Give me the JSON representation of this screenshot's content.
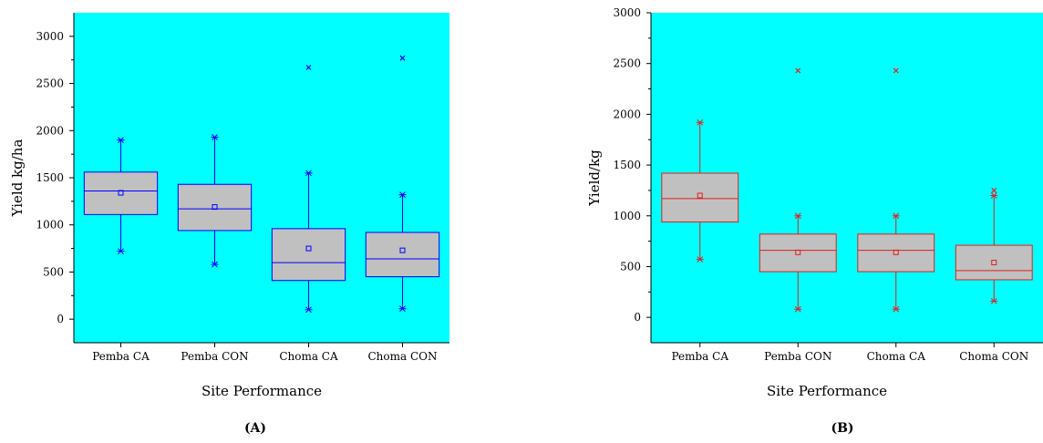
{
  "chart_data": [
    {
      "type": "box",
      "panel_label": "(A)",
      "xlabel": "Site Performance",
      "ylabel": "Yield kg/ha",
      "ylim": [
        -250,
        3250
      ],
      "yticks": [
        0,
        500,
        1000,
        1500,
        2000,
        2500,
        3000
      ],
      "plot_background": "#00ffff",
      "color": "#0000ff",
      "categories": [
        "Pemba CA",
        "Pemba CON",
        "Choma CA",
        "Choma CON"
      ],
      "boxes": [
        {
          "q1": 1110,
          "median": 1360,
          "q3": 1560,
          "mean": 1340,
          "whisker_low": 720,
          "whisker_high": 1900,
          "outliers": []
        },
        {
          "q1": 940,
          "median": 1170,
          "q3": 1430,
          "mean": 1190,
          "whisker_low": 580,
          "whisker_high": 1930,
          "outliers": []
        },
        {
          "q1": 410,
          "median": 600,
          "q3": 960,
          "mean": 750,
          "whisker_low": 100,
          "whisker_high": 1550,
          "outliers": [
            2670
          ]
        },
        {
          "q1": 450,
          "median": 640,
          "q3": 920,
          "mean": 730,
          "whisker_low": 110,
          "whisker_high": 1320,
          "outliers": [
            2770
          ]
        }
      ]
    },
    {
      "type": "box",
      "panel_label": "(B)",
      "xlabel": "Site Performance",
      "ylabel": "Yield/kg",
      "ylim": [
        -250,
        3000
      ],
      "yticks": [
        0,
        500,
        1000,
        1500,
        2000,
        2500,
        3000
      ],
      "plot_background": "#00ffff",
      "color": "#e0201c",
      "categories": [
        "Pemba CA",
        "Pemba CON",
        "Choma CA",
        "Choma CON"
      ],
      "boxes": [
        {
          "q1": 940,
          "median": 1170,
          "q3": 1420,
          "mean": 1200,
          "whisker_low": 570,
          "whisker_high": 1920,
          "outliers": []
        },
        {
          "q1": 450,
          "median": 660,
          "q3": 820,
          "mean": 640,
          "whisker_low": 80,
          "whisker_high": 1000,
          "outliers": [
            2430
          ]
        },
        {
          "q1": 450,
          "median": 660,
          "q3": 820,
          "mean": 640,
          "whisker_low": 80,
          "whisker_high": 1000,
          "outliers": [
            2430
          ]
        },
        {
          "q1": 370,
          "median": 460,
          "q3": 710,
          "mean": 540,
          "whisker_low": 160,
          "whisker_high": 1200,
          "outliers": [
            1250
          ]
        }
      ]
    }
  ]
}
